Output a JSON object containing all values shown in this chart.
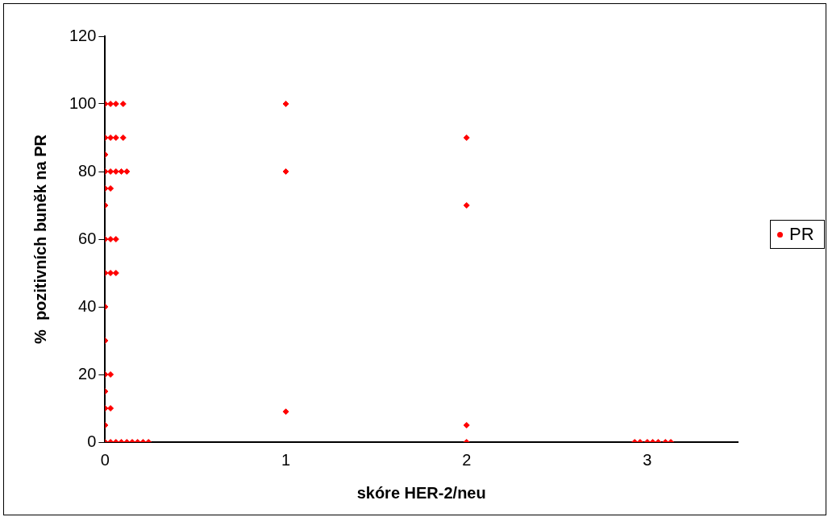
{
  "chart_data": {
    "type": "scatter",
    "xlabel": "skóre HER-2/neu",
    "ylabel": "%  pozitivních buněk na PR",
    "xlim": [
      0,
      3.5
    ],
    "xticks": [
      0,
      1,
      2,
      3
    ],
    "ylim": [
      0,
      120
    ],
    "yticks": [
      0,
      20,
      40,
      60,
      80,
      100,
      120
    ],
    "grid": false,
    "legend": "right",
    "marker": "diamond",
    "series": [
      {
        "name": "PR",
        "color": "#ff0000",
        "x": [
          0,
          0.03,
          0.06,
          0.1,
          0,
          0.03,
          0.06,
          0.1,
          0,
          0,
          0.03,
          0.06,
          0.09,
          0.12,
          0,
          0.03,
          0,
          0,
          0.03,
          0.06,
          0,
          0.03,
          0.06,
          0,
          0,
          0,
          0.03,
          0,
          0,
          0.03,
          0,
          0,
          0.03,
          0.06,
          0.09,
          0.12,
          0.15,
          0.18,
          0.21,
          0.24,
          1,
          1,
          1,
          2,
          2,
          2,
          2,
          2.93,
          2.96,
          3,
          3.03,
          3.06,
          3.1,
          3.13
        ],
        "values": [
          100,
          100,
          100,
          100,
          90,
          90,
          90,
          90,
          85,
          80,
          80,
          80,
          80,
          80,
          75,
          75,
          70,
          60,
          60,
          60,
          50,
          50,
          50,
          40,
          30,
          20,
          20,
          15,
          10,
          10,
          5,
          0,
          0,
          0,
          0,
          0,
          0,
          0,
          0,
          0,
          100,
          80,
          9,
          90,
          70,
          5,
          0,
          0,
          0,
          0,
          0,
          0,
          0,
          0
        ]
      }
    ]
  }
}
